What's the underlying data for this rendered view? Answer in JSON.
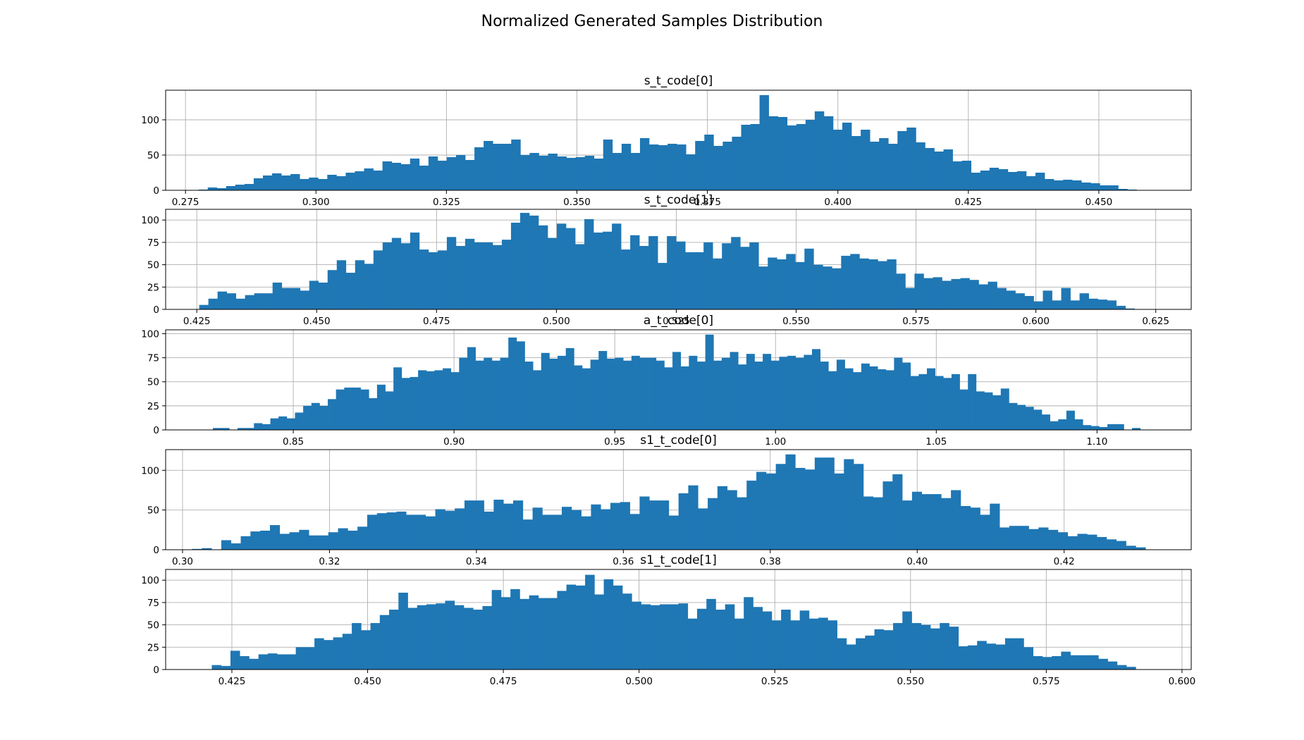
{
  "suptitle": "Normalized Generated Samples Distribution",
  "colors": {
    "bar": "#1f77b4",
    "grid": "#b0b0b0"
  },
  "chart_data": [
    {
      "type": "bar",
      "title": "s_t_code[0]",
      "grid": true,
      "xlim": [
        0.2712,
        0.4677
      ],
      "ylim": [
        0,
        142
      ],
      "xticks": [
        0.275,
        0.3,
        0.325,
        0.35,
        0.375,
        0.4,
        0.425,
        0.45
      ],
      "xtick_labels": [
        "0.275",
        "0.300",
        "0.325",
        "0.350",
        "0.375",
        "0.400",
        "0.425",
        "0.450"
      ],
      "yticks": [
        0,
        50,
        100
      ],
      "bin_start": 0.2775,
      "bin_end": 0.459,
      "values": [
        1,
        4,
        3,
        6,
        8,
        9,
        17,
        21,
        24,
        21,
        23,
        16,
        18,
        16,
        22,
        20,
        25,
        27,
        31,
        28,
        41,
        39,
        37,
        45,
        35,
        48,
        42,
        47,
        50,
        43,
        61,
        70,
        66,
        66,
        72,
        50,
        53,
        49,
        52,
        48,
        46,
        47,
        49,
        45,
        72,
        53,
        66,
        53,
        74,
        65,
        64,
        66,
        65,
        51,
        70,
        79,
        63,
        69,
        76,
        93,
        94,
        135,
        105,
        104,
        92,
        94,
        100,
        112,
        105,
        86,
        96,
        77,
        86,
        69,
        74,
        66,
        84,
        89,
        68,
        60,
        55,
        58,
        41,
        42,
        25,
        28,
        32,
        30,
        26,
        27,
        20,
        25,
        16,
        14,
        15,
        14,
        11,
        10,
        7,
        7,
        2,
        1,
        0
      ]
    },
    {
      "type": "bar",
      "title": "s_t_code[1]",
      "grid": true,
      "xlim": [
        0.4185,
        0.6324
      ],
      "ylim": [
        0,
        112
      ],
      "xticks": [
        0.425,
        0.45,
        0.475,
        0.5,
        0.525,
        0.55,
        0.575,
        0.6,
        0.625
      ],
      "xtick_labels": [
        "0.425",
        "0.450",
        "0.475",
        "0.500",
        "0.525",
        "0.550",
        "0.575",
        "0.600",
        "0.625"
      ],
      "yticks": [
        0,
        25,
        50,
        75,
        100
      ],
      "bin_start": 0.4255,
      "bin_end": 0.6225,
      "values": [
        5,
        12,
        20,
        18,
        12,
        16,
        18,
        18,
        30,
        24,
        24,
        21,
        32,
        30,
        44,
        55,
        41,
        55,
        51,
        66,
        75,
        80,
        74,
        86,
        67,
        64,
        66,
        81,
        71,
        79,
        75,
        75,
        72,
        78,
        97,
        108,
        105,
        94,
        80,
        96,
        91,
        73,
        101,
        86,
        87,
        96,
        67,
        83,
        71,
        82,
        52,
        82,
        76,
        64,
        64,
        75,
        57,
        74,
        81,
        70,
        75,
        48,
        58,
        56,
        62,
        53,
        68,
        50,
        48,
        46,
        60,
        62,
        57,
        56,
        54,
        56,
        40,
        24,
        40,
        35,
        36,
        32,
        34,
        35,
        33,
        28,
        31,
        24,
        21,
        18,
        15,
        9,
        21,
        10,
        24,
        10,
        18,
        12,
        11,
        10,
        4,
        1,
        0
      ]
    },
    {
      "type": "bar",
      "title": "a_t_code[0]",
      "grid": true,
      "xlim": [
        0.8103,
        1.1293
      ],
      "ylim": [
        0,
        104
      ],
      "xticks": [
        0.85,
        0.9,
        0.95,
        1.0,
        1.05,
        1.1
      ],
      "xtick_labels": [
        "0.85",
        "0.90",
        "0.95",
        "1.00",
        "1.05",
        "1.10"
      ],
      "yticks": [
        0,
        25,
        50,
        75,
        100
      ],
      "bin_start": 0.825,
      "bin_end": 1.116,
      "values": [
        2,
        2,
        0,
        2,
        2,
        7,
        6,
        12,
        14,
        12,
        18,
        25,
        28,
        25,
        32,
        42,
        44,
        44,
        42,
        33,
        47,
        40,
        65,
        54,
        55,
        62,
        61,
        62,
        64,
        60,
        75,
        86,
        72,
        75,
        72,
        75,
        96,
        92,
        71,
        62,
        80,
        74,
        77,
        85,
        67,
        64,
        73,
        82,
        74,
        75,
        72,
        77,
        75,
        75,
        72,
        65,
        81,
        66,
        77,
        71,
        99,
        72,
        75,
        81,
        68,
        79,
        71,
        79,
        72,
        76,
        77,
        75,
        78,
        84,
        71,
        61,
        73,
        64,
        60,
        69,
        66,
        63,
        62,
        75,
        70,
        56,
        58,
        64,
        56,
        54,
        58,
        42,
        58,
        40,
        39,
        36,
        43,
        28,
        26,
        24,
        21,
        16,
        9,
        11,
        20,
        11,
        5,
        4,
        3,
        6,
        6,
        0,
        2,
        0
      ]
    },
    {
      "type": "bar",
      "title": "s1_t_code[0]",
      "grid": true,
      "xlim": [
        0.2977,
        0.4373
      ],
      "ylim": [
        0,
        126
      ],
      "xticks": [
        0.3,
        0.32,
        0.34,
        0.36,
        0.38,
        0.4,
        0.42
      ],
      "xtick_labels": [
        "0.30",
        "0.32",
        "0.34",
        "0.36",
        "0.38",
        "0.40",
        "0.42"
      ],
      "yticks": [
        0,
        50,
        100
      ],
      "bin_start": 0.3013,
      "bin_end": 0.4324,
      "values": [
        1,
        2,
        0,
        12,
        8,
        17,
        23,
        24,
        31,
        20,
        22,
        25,
        18,
        18,
        22,
        27,
        24,
        29,
        44,
        46,
        47,
        48,
        44,
        44,
        42,
        51,
        49,
        52,
        62,
        62,
        48,
        63,
        58,
        62,
        38,
        53,
        44,
        44,
        54,
        50,
        42,
        57,
        51,
        59,
        60,
        45,
        67,
        62,
        62,
        43,
        71,
        81,
        52,
        65,
        80,
        75,
        66,
        87,
        98,
        96,
        108,
        120,
        103,
        101,
        116,
        116,
        96,
        114,
        108,
        67,
        66,
        86,
        95,
        62,
        73,
        70,
        70,
        65,
        75,
        55,
        53,
        44,
        58,
        28,
        30,
        30,
        26,
        28,
        25,
        22,
        17,
        20,
        19,
        16,
        13,
        11,
        5,
        3,
        0
      ]
    },
    {
      "type": "bar",
      "title": "s1_t_code[1]",
      "grid": true,
      "xlim": [
        0.4128,
        0.6017
      ],
      "ylim": [
        0,
        112
      ],
      "xticks": [
        0.425,
        0.45,
        0.475,
        0.5,
        0.525,
        0.55,
        0.575,
        0.6
      ],
      "xtick_labels": [
        "0.425",
        "0.450",
        "0.475",
        "0.500",
        "0.525",
        "0.550",
        "0.575",
        "0.600"
      ],
      "yticks": [
        0,
        25,
        50,
        75,
        100
      ],
      "bin_start": 0.4213,
      "bin_end": 0.5932,
      "values": [
        5,
        4,
        21,
        15,
        12,
        17,
        18,
        17,
        17,
        25,
        25,
        35,
        33,
        36,
        40,
        52,
        44,
        52,
        61,
        67,
        86,
        69,
        72,
        73,
        74,
        77,
        72,
        69,
        67,
        71,
        89,
        81,
        90,
        79,
        83,
        80,
        80,
        88,
        95,
        94,
        106,
        84,
        101,
        94,
        85,
        76,
        73,
        72,
        73,
        73,
        74,
        57,
        68,
        79,
        67,
        73,
        57,
        81,
        70,
        65,
        55,
        67,
        55,
        66,
        57,
        58,
        55,
        35,
        28,
        35,
        38,
        45,
        44,
        52,
        65,
        52,
        50,
        46,
        52,
        48,
        26,
        27,
        32,
        29,
        28,
        35,
        35,
        25,
        15,
        14,
        15,
        20,
        16,
        16,
        16,
        12,
        9,
        5,
        3,
        0
      ]
    }
  ]
}
